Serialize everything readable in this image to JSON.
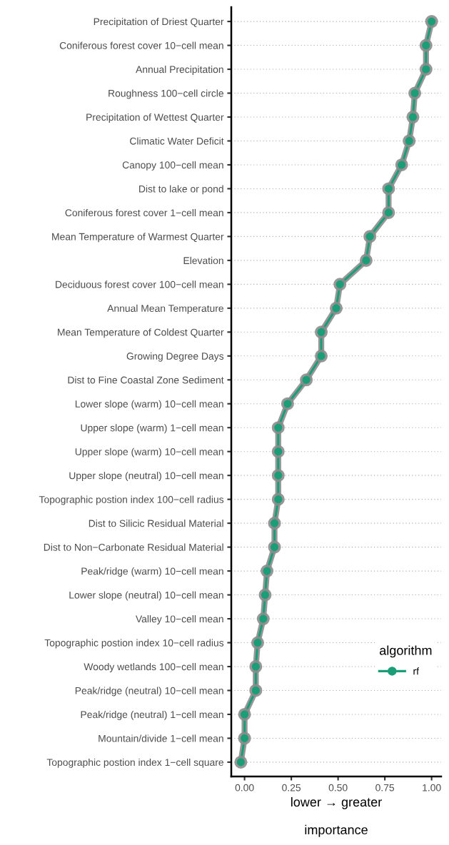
{
  "chart_data": {
    "type": "line",
    "orientation": "horizontal",
    "xlabel": "lower → greater\n\nimportance",
    "legend_title": "algorithm",
    "categories": [
      "Precipitation of Driest Quarter",
      "Coniferous forest cover 10−cell mean",
      "Annual Precipitation",
      "Roughness 100−cell circle",
      "Precipitation of Wettest Quarter",
      "Climatic Water Deficit",
      "Canopy 100−cell mean",
      "Dist to lake or pond",
      "Coniferous forest cover 1−cell mean",
      "Mean Temperature of Warmest Quarter",
      "Elevation",
      "Deciduous forest cover 100−cell mean",
      "Annual Mean Temperature",
      "Mean Temperature of Coldest Quarter",
      "Growing Degree Days",
      "Dist to Fine Coastal Zone Sediment",
      "Lower slope (warm) 10−cell mean",
      "Upper slope (warm) 1−cell mean",
      "Upper slope (warm) 10−cell mean",
      "Upper slope (neutral) 10−cell mean",
      "Topographic postion index 100−cell radius",
      "Dist to Silicic Residual Material",
      "Dist to Non−Carbonate Residual Material",
      "Peak/ridge (warm) 10−cell mean",
      "Lower slope (neutral) 10−cell mean",
      "Valley 10−cell mean",
      "Topographic postion index 10−cell radius",
      "Woody wetlands 100−cell mean",
      "Peak/ridge (neutral) 10−cell mean",
      "Peak/ridge (neutral) 1−cell mean",
      "Mountain/divide 1−cell mean",
      "Topographic postion index 1−cell square"
    ],
    "series": [
      {
        "name": "rf",
        "color": "#1b9e77",
        "values": [
          1.0,
          0.97,
          0.97,
          0.91,
          0.9,
          0.88,
          0.84,
          0.77,
          0.77,
          0.67,
          0.65,
          0.51,
          0.49,
          0.41,
          0.41,
          0.33,
          0.23,
          0.18,
          0.18,
          0.18,
          0.18,
          0.16,
          0.16,
          0.12,
          0.11,
          0.1,
          0.07,
          0.06,
          0.06,
          0.0,
          0.0,
          -0.02
        ]
      }
    ],
    "xlim": [
      -0.071,
      1.051
    ],
    "xticks": [
      {
        "value": 0,
        "label": "0.00"
      },
      {
        "value": 0.25,
        "label": "0.25"
      },
      {
        "value": 0.5,
        "label": "0.50"
      },
      {
        "value": 0.75,
        "label": "0.75"
      },
      {
        "value": 1,
        "label": "1.00"
      }
    ],
    "grid": "y",
    "legend": "right",
    "marker": "circle",
    "line_style": "solid"
  }
}
